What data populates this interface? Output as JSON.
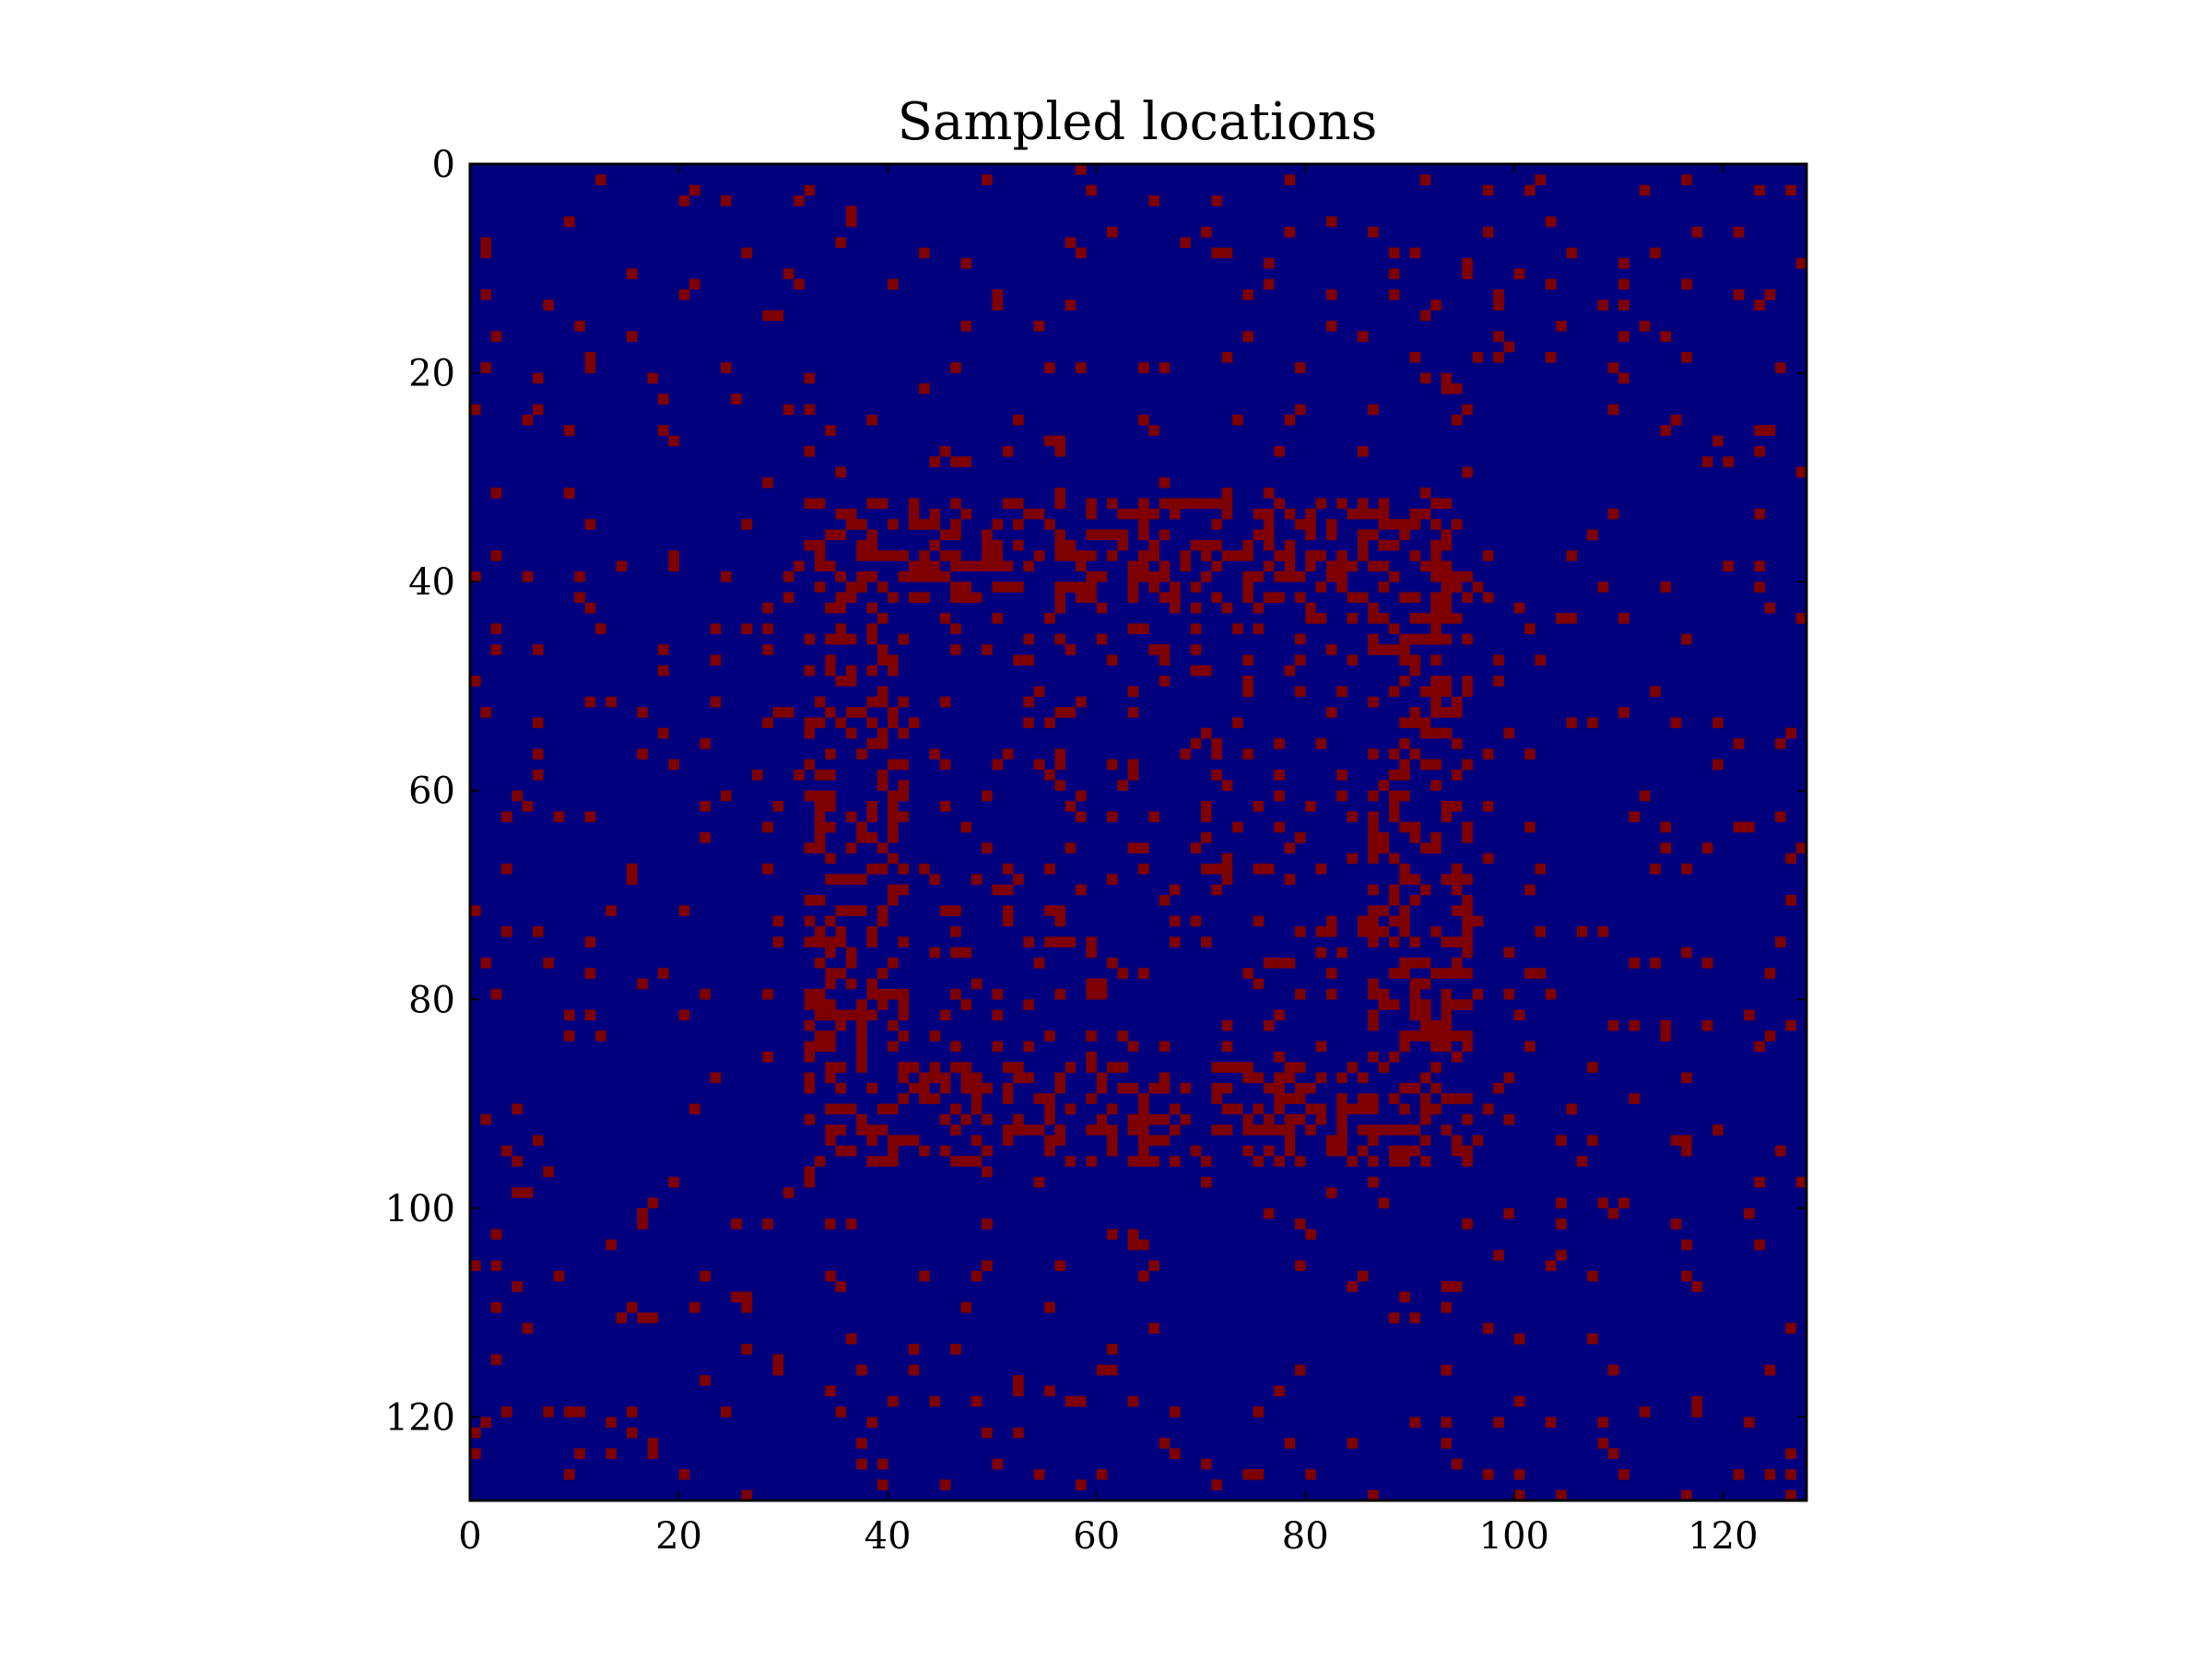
{
  "chart_data": {
    "type": "heatmap",
    "title": "Sampled locations",
    "grid_size": 128,
    "x_range": [
      0,
      128
    ],
    "y_range": [
      0,
      128
    ],
    "y_inverted": true,
    "x_ticks": [
      0,
      20,
      40,
      60,
      80,
      100,
      120
    ],
    "y_ticks": [
      0,
      20,
      40,
      60,
      80,
      100,
      120
    ],
    "x_tick_labels": [
      "0",
      "20",
      "40",
      "60",
      "80",
      "100",
      "120"
    ],
    "y_tick_labels": [
      "0",
      "20",
      "40",
      "60",
      "80",
      "100",
      "120"
    ],
    "values": "binary mask: 1 = sampled, 0 = not sampled",
    "colors": {
      "unsampled": "#00007f",
      "sampled": "#7f0000"
    },
    "sampling_pattern": {
      "background_density": 0.04,
      "dense_region": {
        "x": [
          32,
          96
        ],
        "y": [
          32,
          96
        ],
        "border_density": 0.38,
        "interior_density": 0.1
      }
    },
    "grid": false,
    "legend": "none"
  }
}
